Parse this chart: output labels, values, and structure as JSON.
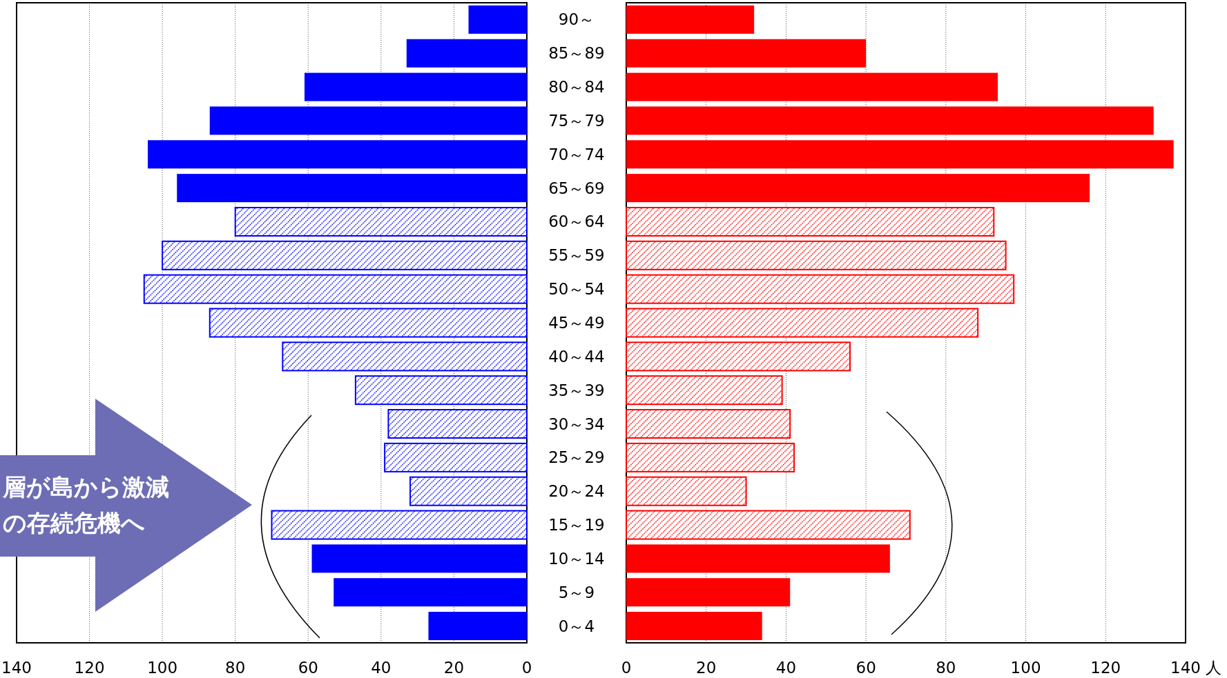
{
  "chart_data": [
    {
      "type": "bar",
      "orientation": "horizontal",
      "series": [
        {
          "color": "#0000ff",
          "values": [
            16,
            33,
            61,
            87,
            104,
            96,
            null,
            null,
            null,
            null,
            null,
            null,
            null,
            null,
            null,
            null,
            59,
            53,
            27
          ]
        },
        {
          "color": "#0000ff",
          "values": [
            null,
            null,
            null,
            null,
            null,
            null,
            80,
            100,
            105,
            87,
            67,
            47,
            38,
            39,
            32,
            70,
            null,
            null,
            null
          ]
        }
      ],
      "xlim": [
        140,
        0
      ],
      "xticks": [
        140,
        120,
        100,
        80,
        60,
        40,
        20,
        0
      ],
      "grid": "x",
      "tick_labels": "x",
      "annotations": [
        "層が島から激減",
        "の存続危機へ"
      ]
    },
    {
      "type": "bar",
      "orientation": "horizontal",
      "categories": [
        "90～",
        "85～89",
        "80～84",
        "75～79",
        "70～74",
        "65～69",
        "60～64",
        "55～59",
        "50～54",
        "45～49",
        "40～44",
        "35～39",
        "30～34",
        "25～29",
        "20～24",
        "15～19",
        "10～14",
        "5～9",
        "0～4"
      ],
      "series": [
        {
          "color": "#ff0000",
          "values": [
            32,
            60,
            93,
            132,
            137,
            116,
            null,
            null,
            null,
            null,
            null,
            null,
            null,
            null,
            null,
            null,
            66,
            41,
            34
          ]
        },
        {
          "color": "#ff0000",
          "values": [
            null,
            null,
            null,
            null,
            null,
            null,
            92,
            95,
            97,
            88,
            56,
            39,
            41,
            42,
            30,
            71,
            null,
            null,
            null
          ]
        }
      ],
      "xlim": [
        0,
        140
      ],
      "xticks": [
        0,
        20,
        40,
        60,
        80,
        100,
        120,
        140
      ],
      "grid": "x",
      "xlabel": "人"
    }
  ]
}
